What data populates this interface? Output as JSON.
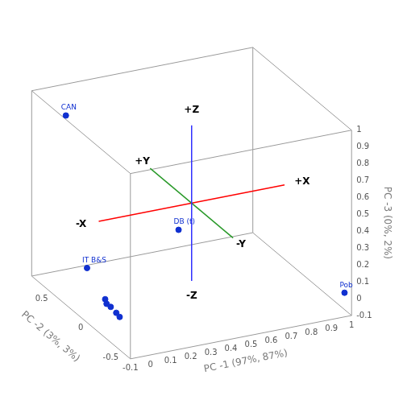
{
  "chart_data": {
    "type": "scatter3d",
    "x_label": "PC -1 (97%, 87%)",
    "y_label": "PC -2 (3%, 3%)",
    "z_label": "PC -3 (0%, 2%)",
    "xlim": [
      -0.1,
      1
    ],
    "xticks": [
      -0.1,
      0,
      0.1,
      0.2,
      0.3,
      0.4,
      0.5,
      0.6,
      0.7,
      0.8,
      0.9,
      1
    ],
    "ylim": [
      -0.6,
      0.8
    ],
    "yticks": [
      -0.5,
      0,
      0.5
    ],
    "zlim": [
      -0.1,
      1
    ],
    "zticks": [
      -0.1,
      0,
      0.1,
      0.2,
      0.3,
      0.4,
      0.5,
      0.6,
      0.7,
      0.8,
      0.9,
      1
    ],
    "points": {
      "labels": [
        "CAN",
        "IT B&S",
        "DB (t)",
        "Pob",
        null,
        null,
        null,
        null,
        null
      ],
      "x": [
        0.0,
        0.0,
        0.35,
        1.0,
        0.02,
        0.03,
        0.04,
        0.02,
        0.05
      ],
      "y": [
        0.6,
        0.3,
        0.0,
        -0.5,
        0.1,
        0.05,
        0.0,
        0.08,
        -0.02
      ],
      "z": [
        0.9,
        0.1,
        0.35,
        0.0,
        -0.02,
        -0.05,
        -0.07,
        -0.04,
        -0.09
      ],
      "color": "#1030d0",
      "marker": "circle"
    },
    "axis_lines": [
      {
        "labels": [
          "-X",
          "+X"
        ],
        "color": "#ff0000"
      },
      {
        "labels": [
          "-Y",
          "+Y"
        ],
        "color": "#2a9a2a"
      },
      {
        "labels": [
          "-Z",
          "+Z"
        ],
        "color": "#3030ff"
      }
    ]
  }
}
